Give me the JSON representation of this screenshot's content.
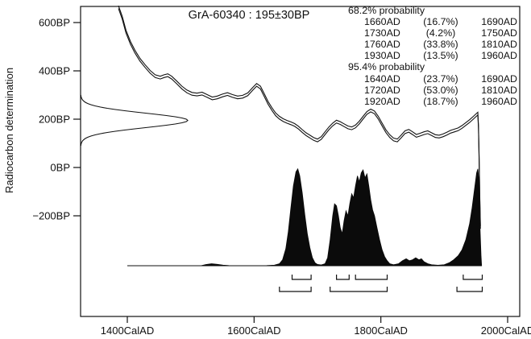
{
  "chart_data": {
    "type": "line",
    "title": "GrA-60340 : 195±30BP",
    "ylabel": "Radiocarbon determination",
    "x_axis": {
      "unit": "CalAD",
      "ticks": [
        {
          "value": 1400,
          "label": "1400CalAD"
        },
        {
          "value": 1600,
          "label": "1600CalAD"
        },
        {
          "value": 1800,
          "label": "1800CalAD"
        },
        {
          "value": 2000,
          "label": "2000CalAD"
        }
      ]
    },
    "y_axis": {
      "unit": "BP",
      "ticks": [
        {
          "value": 600,
          "label": "600BP"
        },
        {
          "value": 400,
          "label": "400BP"
        },
        {
          "value": 200,
          "label": "200BP"
        },
        {
          "value": 0,
          "label": "0BP"
        },
        {
          "value": -200,
          "label": "−200BP"
        }
      ]
    },
    "probability": {
      "s68": {
        "header": "68.2% probability",
        "rows": [
          {
            "from": "1660AD",
            "pct": "(16.7%)",
            "to": "1690AD"
          },
          {
            "from": "1730AD",
            "pct": "(4.2%)",
            "to": "1750AD"
          },
          {
            "from": "1760AD",
            "pct": "(33.8%)",
            "to": "1810AD"
          },
          {
            "from": "1930AD",
            "pct": "(13.5%)",
            "to": "1960AD"
          }
        ]
      },
      "s95": {
        "header": "95.4% probability",
        "rows": [
          {
            "from": "1640AD",
            "pct": "(23.7%)",
            "to": "1690AD"
          },
          {
            "from": "1720AD",
            "pct": "(53.0%)",
            "to": "1810AD"
          },
          {
            "from": "1920AD",
            "pct": "(18.7%)",
            "to": "1960AD"
          }
        ]
      }
    },
    "radiocarbon_date": {
      "lab_code": "GrA-60340",
      "bp": 195,
      "sigma": 30
    },
    "ranges_68": [
      [
        1660,
        1690
      ],
      [
        1730,
        1750
      ],
      [
        1760,
        1810
      ],
      [
        1930,
        1960
      ]
    ],
    "ranges_95": [
      [
        1640,
        1690
      ],
      [
        1720,
        1810
      ],
      [
        1920,
        1960
      ]
    ],
    "calibration_curve": [
      [
        1386,
        664
      ],
      [
        1392,
        620
      ],
      [
        1398,
        562
      ],
      [
        1405,
        516
      ],
      [
        1412,
        480
      ],
      [
        1420,
        446
      ],
      [
        1428,
        420
      ],
      [
        1436,
        396
      ],
      [
        1444,
        378
      ],
      [
        1452,
        372
      ],
      [
        1458,
        378
      ],
      [
        1464,
        382
      ],
      [
        1470,
        372
      ],
      [
        1478,
        352
      ],
      [
        1486,
        331
      ],
      [
        1494,
        315
      ],
      [
        1502,
        305
      ],
      [
        1510,
        302
      ],
      [
        1518,
        306
      ],
      [
        1526,
        296
      ],
      [
        1534,
        286
      ],
      [
        1542,
        290
      ],
      [
        1550,
        298
      ],
      [
        1558,
        304
      ],
      [
        1566,
        296
      ],
      [
        1574,
        290
      ],
      [
        1582,
        293
      ],
      [
        1590,
        303
      ],
      [
        1598,
        326
      ],
      [
        1604,
        342
      ],
      [
        1610,
        331
      ],
      [
        1616,
        300
      ],
      [
        1622,
        268
      ],
      [
        1628,
        242
      ],
      [
        1634,
        220
      ],
      [
        1640,
        206
      ],
      [
        1646,
        196
      ],
      [
        1652,
        189
      ],
      [
        1658,
        183
      ],
      [
        1664,
        176
      ],
      [
        1670,
        165
      ],
      [
        1676,
        151
      ],
      [
        1682,
        138
      ],
      [
        1688,
        128
      ],
      [
        1694,
        118
      ],
      [
        1700,
        112
      ],
      [
        1706,
        122
      ],
      [
        1712,
        142
      ],
      [
        1718,
        162
      ],
      [
        1724,
        178
      ],
      [
        1730,
        190
      ],
      [
        1736,
        184
      ],
      [
        1742,
        175
      ],
      [
        1748,
        166
      ],
      [
        1754,
        162
      ],
      [
        1760,
        170
      ],
      [
        1766,
        186
      ],
      [
        1772,
        206
      ],
      [
        1778,
        226
      ],
      [
        1784,
        236
      ],
      [
        1790,
        228
      ],
      [
        1796,
        206
      ],
      [
        1802,
        178
      ],
      [
        1808,
        150
      ],
      [
        1814,
        130
      ],
      [
        1820,
        116
      ],
      [
        1826,
        112
      ],
      [
        1832,
        128
      ],
      [
        1838,
        146
      ],
      [
        1844,
        152
      ],
      [
        1850,
        142
      ],
      [
        1856,
        131
      ],
      [
        1862,
        136
      ],
      [
        1868,
        142
      ],
      [
        1874,
        146
      ],
      [
        1880,
        138
      ],
      [
        1886,
        130
      ],
      [
        1892,
        128
      ],
      [
        1898,
        133
      ],
      [
        1904,
        140
      ],
      [
        1910,
        148
      ],
      [
        1916,
        153
      ],
      [
        1922,
        158
      ],
      [
        1928,
        168
      ],
      [
        1934,
        180
      ],
      [
        1940,
        192
      ],
      [
        1946,
        206
      ],
      [
        1950,
        216
      ],
      [
        1953,
        223
      ],
      [
        1954,
        170
      ],
      [
        1955,
        40
      ],
      [
        1956,
        -120
      ],
      [
        1957,
        -248
      ]
    ],
    "posterior": [
      [
        1516,
        0
      ],
      [
        1524,
        0.012
      ],
      [
        1533,
        0.02
      ],
      [
        1542,
        0.014
      ],
      [
        1551,
        0.006
      ],
      [
        1560,
        0.002
      ],
      [
        1580,
        0.001
      ],
      [
        1620,
        0.002
      ],
      [
        1632,
        0.006
      ],
      [
        1640,
        0.02
      ],
      [
        1645,
        0.06
      ],
      [
        1650,
        0.17
      ],
      [
        1654,
        0.34
      ],
      [
        1658,
        0.58
      ],
      [
        1662,
        0.8
      ],
      [
        1666,
        0.94
      ],
      [
        1669,
        0.97
      ],
      [
        1672,
        0.9
      ],
      [
        1676,
        0.73
      ],
      [
        1680,
        0.51
      ],
      [
        1684,
        0.32
      ],
      [
        1688,
        0.18
      ],
      [
        1692,
        0.08
      ],
      [
        1696,
        0.03
      ],
      [
        1700,
        0.013
      ],
      [
        1706,
        0.008
      ],
      [
        1712,
        0.02
      ],
      [
        1716,
        0.08
      ],
      [
        1720,
        0.26
      ],
      [
        1724,
        0.5
      ],
      [
        1727,
        0.62
      ],
      [
        1730,
        0.6
      ],
      [
        1733,
        0.5
      ],
      [
        1736,
        0.38
      ],
      [
        1739,
        0.32
      ],
      [
        1742,
        0.45
      ],
      [
        1745,
        0.55
      ],
      [
        1748,
        0.5
      ],
      [
        1751,
        0.62
      ],
      [
        1754,
        0.72
      ],
      [
        1757,
        0.68
      ],
      [
        1760,
        0.8
      ],
      [
        1763,
        0.9
      ],
      [
        1766,
        0.84
      ],
      [
        1769,
        0.93
      ],
      [
        1772,
        0.96
      ],
      [
        1775,
        0.88
      ],
      [
        1778,
        0.92
      ],
      [
        1781,
        0.8
      ],
      [
        1784,
        0.66
      ],
      [
        1787,
        0.56
      ],
      [
        1790,
        0.5
      ],
      [
        1794,
        0.38
      ],
      [
        1798,
        0.26
      ],
      [
        1802,
        0.16
      ],
      [
        1806,
        0.09
      ],
      [
        1810,
        0.05
      ],
      [
        1814,
        0.02
      ],
      [
        1820,
        0.01
      ],
      [
        1828,
        0.02
      ],
      [
        1834,
        0.05
      ],
      [
        1840,
        0.07
      ],
      [
        1845,
        0.05
      ],
      [
        1850,
        0.06
      ],
      [
        1855,
        0.08
      ],
      [
        1860,
        0.06
      ],
      [
        1864,
        0.07
      ],
      [
        1868,
        0.04
      ],
      [
        1874,
        0.02
      ],
      [
        1880,
        0.01
      ],
      [
        1890,
        0.005
      ],
      [
        1900,
        0.01
      ],
      [
        1908,
        0.03
      ],
      [
        1915,
        0.06
      ],
      [
        1922,
        0.1
      ],
      [
        1928,
        0.16
      ],
      [
        1934,
        0.26
      ],
      [
        1940,
        0.42
      ],
      [
        1944,
        0.58
      ],
      [
        1948,
        0.78
      ],
      [
        1951,
        0.93
      ],
      [
        1953,
        0.97
      ],
      [
        1955,
        0.85
      ],
      [
        1956,
        0.45
      ],
      [
        1958,
        0.1
      ],
      [
        1959,
        0
      ]
    ],
    "colors": {
      "ink": "#111111",
      "fill": "#0b0b0b",
      "background": "#ffffff"
    }
  }
}
